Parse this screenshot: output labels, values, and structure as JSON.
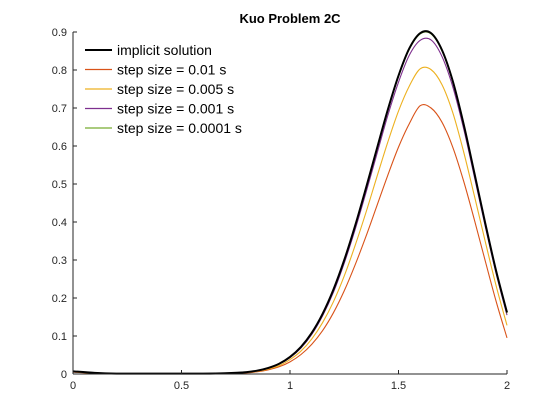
{
  "chart_data": {
    "type": "line",
    "title": "Kuo Problem 2C",
    "xlabel": "",
    "ylabel": "",
    "xlim": [
      0,
      2
    ],
    "ylim": [
      0,
      0.9
    ],
    "x_ticks": [
      "0",
      "0.5",
      "1",
      "1.5",
      "2"
    ],
    "y_ticks": [
      "0",
      "0.1",
      "0.2",
      "0.3",
      "0.4",
      "0.5",
      "0.6",
      "0.7",
      "0.8",
      "0.9"
    ],
    "grid": false,
    "legend_position": "top-left",
    "x": [
      0,
      0.1,
      0.2,
      0.3,
      0.4,
      0.5,
      0.6,
      0.7,
      0.8,
      0.85,
      0.9,
      0.95,
      1.0,
      1.05,
      1.1,
      1.15,
      1.2,
      1.25,
      1.3,
      1.35,
      1.4,
      1.45,
      1.5,
      1.55,
      1.6,
      1.65,
      1.7,
      1.75,
      1.8,
      1.85,
      1.9,
      1.95,
      2.0
    ],
    "series": [
      {
        "name": "implicit solution",
        "color": "#000000",
        "values": [
          0.007,
          0.003,
          0.001,
          0.001,
          0.001,
          0.001,
          0.001,
          0.002,
          0.005,
          0.009,
          0.016,
          0.027,
          0.045,
          0.071,
          0.108,
          0.158,
          0.222,
          0.3,
          0.39,
          0.489,
          0.592,
          0.694,
          0.785,
          0.857,
          0.897,
          0.897,
          0.853,
          0.771,
          0.658,
          0.528,
          0.396,
          0.271,
          0.162
        ]
      },
      {
        "name": "step size = 0.01 s",
        "color": "#D95319",
        "values": [
          0.005,
          0.002,
          0.001,
          0.001,
          0.001,
          0.001,
          0.001,
          0.001,
          0.003,
          0.006,
          0.011,
          0.019,
          0.032,
          0.051,
          0.078,
          0.114,
          0.161,
          0.219,
          0.287,
          0.362,
          0.442,
          0.522,
          0.597,
          0.659,
          0.706,
          0.7,
          0.663,
          0.597,
          0.508,
          0.405,
          0.297,
          0.191,
          0.095
        ]
      },
      {
        "name": "step size = 0.005 s",
        "color": "#EDB120",
        "values": [
          0.006,
          0.002,
          0.001,
          0.001,
          0.001,
          0.001,
          0.001,
          0.002,
          0.004,
          0.007,
          0.013,
          0.022,
          0.038,
          0.06,
          0.092,
          0.135,
          0.19,
          0.258,
          0.338,
          0.425,
          0.518,
          0.609,
          0.692,
          0.758,
          0.803,
          0.801,
          0.762,
          0.688,
          0.585,
          0.468,
          0.348,
          0.232,
          0.128
        ]
      },
      {
        "name": "step size = 0.001 s",
        "color": "#7E2F8E",
        "values": [
          0.007,
          0.003,
          0.001,
          0.001,
          0.001,
          0.001,
          0.001,
          0.002,
          0.005,
          0.008,
          0.015,
          0.026,
          0.043,
          0.068,
          0.104,
          0.153,
          0.215,
          0.292,
          0.38,
          0.477,
          0.578,
          0.679,
          0.768,
          0.839,
          0.878,
          0.879,
          0.836,
          0.756,
          0.646,
          0.518,
          0.388,
          0.264,
          0.155
        ]
      },
      {
        "name": "step size = 0.0001 s",
        "color": "#77AC30",
        "values": [
          0.007,
          0.003,
          0.001,
          0.001,
          0.001,
          0.001,
          0.001,
          0.002,
          0.005,
          0.009,
          0.016,
          0.027,
          0.045,
          0.071,
          0.108,
          0.158,
          0.222,
          0.3,
          0.39,
          0.489,
          0.59,
          0.692,
          0.783,
          0.855,
          0.895,
          0.895,
          0.851,
          0.769,
          0.656,
          0.526,
          0.394,
          0.269,
          0.16
        ]
      }
    ]
  }
}
